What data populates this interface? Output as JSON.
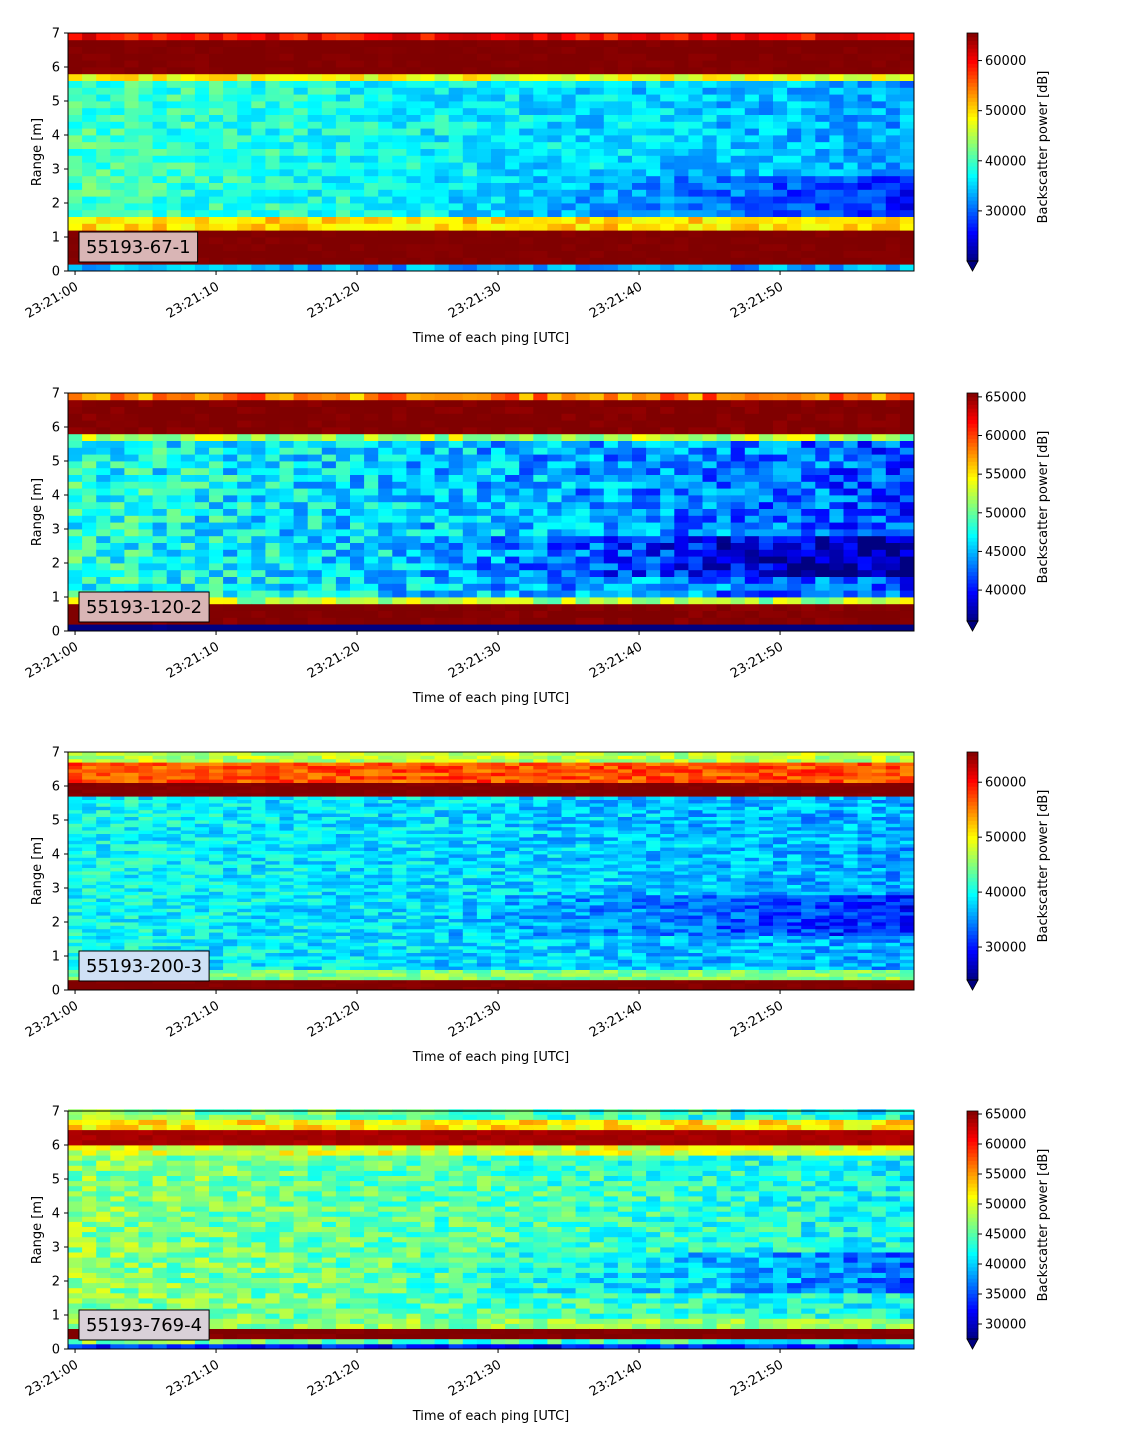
{
  "chart_data": [
    {
      "type": "heatmap",
      "label": "55193-67-1",
      "ylabel": "Range [m]",
      "xlabel": "Time of each ping [UTC]",
      "colorbar_label": "Backscatter power [dB]",
      "x_ticks": [
        "23:21:00",
        "23:21:10",
        "23:21:20",
        "23:21:30",
        "23:21:40",
        "23:21:50"
      ],
      "y_ticks": [
        "0",
        "1",
        "2",
        "3",
        "4",
        "5",
        "6",
        "7"
      ],
      "ylim": [
        0,
        7
      ],
      "xlim_seconds": [
        -0.5,
        59.5
      ],
      "colorbar_ticks": [
        "30000",
        "40000",
        "50000",
        "60000"
      ],
      "clim": [
        20000,
        65500
      ],
      "colormap": "jet",
      "label_box_color": "#d9b5b5",
      "profile": {
        "bands": [
          [
            0.2,
            1.2,
            65500
          ],
          [
            5.9,
            6.75,
            65500
          ]
        ],
        "edges": [
          [
            1.2,
            1.6,
            50000
          ],
          [
            5.6,
            5.9,
            48000
          ],
          [
            6.75,
            6.95,
            60000
          ]
        ],
        "interior_start": 40000,
        "interior_end": 33000,
        "bin_size": 0.2
      }
    },
    {
      "type": "heatmap",
      "label": "55193-120-2",
      "ylabel": "Range [m]",
      "xlabel": "Time of each ping [UTC]",
      "colorbar_label": "Backscatter power [dB]",
      "x_ticks": [
        "23:21:00",
        "23:21:10",
        "23:21:20",
        "23:21:30",
        "23:21:40",
        "23:21:50"
      ],
      "y_ticks": [
        "0",
        "1",
        "2",
        "3",
        "4",
        "5",
        "6",
        "7"
      ],
      "ylim": [
        0,
        7
      ],
      "xlim_seconds": [
        -0.5,
        59.5
      ],
      "colorbar_ticks": [
        "40000",
        "45000",
        "50000",
        "55000",
        "60000",
        "65000"
      ],
      "clim": [
        36000,
        65500
      ],
      "colormap": "jet",
      "label_box_color": "#d9b5b5",
      "profile": {
        "bands": [
          [
            0.2,
            0.8,
            65500
          ],
          [
            5.9,
            6.8,
            65500
          ]
        ],
        "edges": [
          [
            0.8,
            1.1,
            52000
          ],
          [
            5.7,
            5.9,
            52000
          ],
          [
            6.8,
            6.95,
            58000
          ]
        ],
        "interior_start": 48000,
        "interior_end": 42000,
        "bin_size": 0.2
      }
    },
    {
      "type": "heatmap",
      "label": "55193-200-3",
      "ylabel": "Range [m]",
      "xlabel": "Time of each ping [UTC]",
      "colorbar_label": "Backscatter power [dB]",
      "x_ticks": [
        "23:21:00",
        "23:21:10",
        "23:21:20",
        "23:21:30",
        "23:21:40",
        "23:21:50"
      ],
      "y_ticks": [
        "0",
        "1",
        "2",
        "3",
        "4",
        "5",
        "6",
        "7"
      ],
      "ylim": [
        0,
        7
      ],
      "xlim_seconds": [
        -0.5,
        59.5
      ],
      "colorbar_ticks": [
        "30000",
        "40000",
        "50000",
        "60000"
      ],
      "clim": [
        24000,
        65500
      ],
      "colormap": "jet",
      "label_box_color": "#cfe0f5",
      "profile": {
        "bands": [
          [
            0.05,
            0.3,
            65500
          ],
          [
            5.7,
            6.1,
            65500
          ]
        ],
        "edges": [
          [
            0.3,
            0.6,
            45000
          ],
          [
            6.1,
            6.7,
            57000
          ],
          [
            6.7,
            7.0,
            47000
          ]
        ],
        "interior_start": 40000,
        "interior_end": 36000,
        "bin_size": 0.1
      }
    },
    {
      "type": "heatmap",
      "label": "55193-769-4",
      "ylabel": "Range [m]",
      "xlabel": "Time of each ping [UTC]",
      "colorbar_label": "Backscatter power [dB]",
      "x_ticks": [
        "23:21:00",
        "23:21:10",
        "23:21:20",
        "23:21:30",
        "23:21:40",
        "23:21:50"
      ],
      "y_ticks": [
        "0",
        "1",
        "2",
        "3",
        "4",
        "5",
        "6",
        "7"
      ],
      "ylim": [
        0,
        7
      ],
      "xlim_seconds": [
        -0.5,
        59.5
      ],
      "colorbar_ticks": [
        "30000",
        "35000",
        "40000",
        "45000",
        "50000",
        "55000",
        "60000",
        "65000"
      ],
      "clim": [
        27500,
        65500
      ],
      "colormap": "jet",
      "label_box_color": "#d9d0d8",
      "profile": {
        "bands": [
          [
            0.25,
            0.65,
            65500
          ],
          [
            6.0,
            6.5,
            64000
          ]
        ],
        "edges": [
          [
            0.65,
            0.85,
            47000
          ],
          [
            6.5,
            6.8,
            52000
          ],
          [
            5.7,
            6.0,
            50000
          ]
        ],
        "interior_start": 47000,
        "interior_end": 42000,
        "bin_size": 0.15
      }
    }
  ]
}
